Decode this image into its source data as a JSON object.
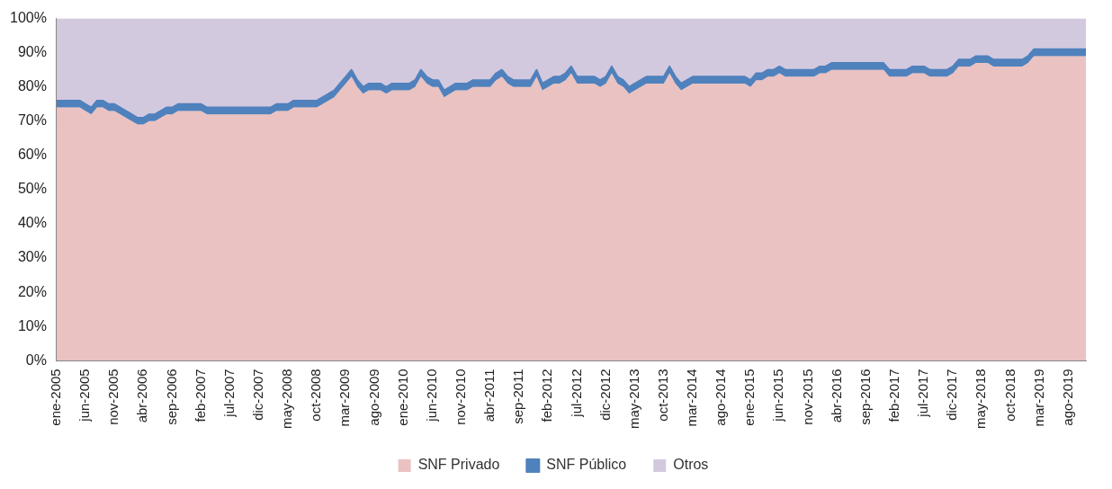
{
  "chart_data": {
    "type": "area",
    "stacked": true,
    "legend": "bottom",
    "grid": false,
    "categories": [
      "ene-2005",
      null,
      null,
      null,
      null,
      "jun-2005",
      null,
      null,
      null,
      null,
      "nov-2005",
      null,
      null,
      null,
      null,
      "abr-2006",
      null,
      null,
      null,
      null,
      "sep-2006",
      null,
      null,
      null,
      null,
      "feb-2007",
      null,
      null,
      null,
      null,
      "jul-2007",
      null,
      null,
      null,
      null,
      "dic-2007",
      null,
      null,
      null,
      null,
      "may-2008",
      null,
      null,
      null,
      null,
      "oct-2008",
      null,
      null,
      null,
      null,
      "mar-2009",
      null,
      null,
      null,
      null,
      "ago-2009",
      null,
      null,
      null,
      null,
      "ene-2010",
      null,
      null,
      null,
      null,
      "jun-2010",
      null,
      null,
      null,
      null,
      "nov-2010",
      null,
      null,
      null,
      null,
      "abr-2011",
      null,
      null,
      null,
      null,
      "sep-2011",
      null,
      null,
      null,
      null,
      "feb-2012",
      null,
      null,
      null,
      null,
      "jul-2012",
      null,
      null,
      null,
      null,
      "dic-2012",
      null,
      null,
      null,
      null,
      "may-2013",
      null,
      null,
      null,
      null,
      "oct-2013",
      null,
      null,
      null,
      null,
      "mar-2014",
      null,
      null,
      null,
      null,
      "ago-2014",
      null,
      null,
      null,
      null,
      "ene-2015",
      null,
      null,
      null,
      null,
      "jun-2015",
      null,
      null,
      null,
      null,
      "nov-2015",
      null,
      null,
      null,
      null,
      "abr-2016",
      null,
      null,
      null,
      null,
      "sep-2016",
      null,
      null,
      null,
      null,
      "feb-2017",
      null,
      null,
      null,
      null,
      "jul-2017",
      null,
      null,
      null,
      null,
      "dic-2017",
      null,
      null,
      null,
      null,
      "may-2018",
      null,
      null,
      null,
      null,
      "oct-2018",
      null,
      null,
      null,
      null,
      "mar-2019",
      null,
      null,
      null,
      null,
      "ago-2019",
      null,
      null,
      null
    ],
    "ylim": [
      0,
      100
    ],
    "yticks": [
      {
        "value": 0,
        "label": "0%"
      },
      {
        "value": 10,
        "label": "10%"
      },
      {
        "value": 20,
        "label": "20%"
      },
      {
        "value": 30,
        "label": "30%"
      },
      {
        "value": 40,
        "label": "40%"
      },
      {
        "value": 50,
        "label": "50%"
      },
      {
        "value": 60,
        "label": "60%"
      },
      {
        "value": 70,
        "label": "70%"
      },
      {
        "value": 80,
        "label": "80%"
      },
      {
        "value": 90,
        "label": "90%"
      },
      {
        "value": 100,
        "label": "100%"
      }
    ],
    "series": [
      {
        "name": "SNF Privado",
        "color": "#c0504d",
        "values": [
          74,
          74,
          74,
          74,
          74,
          73,
          72,
          74,
          74,
          73,
          73,
          72,
          71,
          70,
          69,
          69,
          70,
          70,
          71,
          72,
          72,
          73,
          73,
          73,
          73,
          73,
          72,
          72,
          72,
          72,
          72,
          72,
          72,
          72,
          72,
          72,
          72,
          72,
          73,
          73,
          73,
          74,
          74,
          74,
          74,
          74,
          75,
          76,
          77,
          79,
          81,
          83,
          80,
          78,
          79,
          79,
          79,
          78,
          79,
          79,
          79,
          79,
          80,
          83,
          81,
          80,
          80,
          77,
          78,
          79,
          79,
          79,
          80,
          80,
          80,
          80,
          82,
          83,
          81,
          80,
          80,
          80,
          80,
          83,
          79,
          80,
          81,
          81,
          82,
          84,
          81,
          81,
          81,
          81,
          80,
          81,
          84,
          81,
          80,
          78,
          79,
          80,
          81,
          81,
          81,
          81,
          84,
          81,
          79,
          80,
          81,
          81,
          81,
          81,
          81,
          81,
          81,
          81,
          81,
          81,
          80,
          82,
          82,
          83,
          83,
          84,
          83,
          83,
          83,
          83,
          83,
          83,
          84,
          84,
          85,
          85,
          85,
          85,
          85,
          85,
          85,
          85,
          85,
          85,
          83,
          83,
          83,
          83,
          84,
          84,
          84,
          83,
          83,
          83,
          83,
          84,
          86,
          86,
          86,
          87,
          87,
          87,
          86,
          86,
          86,
          86,
          86,
          86,
          87,
          89,
          89,
          89,
          89,
          89,
          89,
          89,
          89,
          89,
          89
        ]
      },
      {
        "name": "SNF Público",
        "color": "#4f81bd",
        "values": [
          2,
          2,
          2,
          2,
          2,
          2,
          2,
          2,
          2,
          2,
          2,
          2,
          2,
          2,
          2,
          2,
          2,
          2,
          2,
          2,
          2,
          2,
          2,
          2,
          2,
          2,
          2,
          2,
          2,
          2,
          2,
          2,
          2,
          2,
          2,
          2,
          2,
          2,
          2,
          2,
          2,
          2,
          2,
          2,
          2,
          2,
          2,
          2,
          2,
          2,
          2,
          2,
          2,
          2,
          2,
          2,
          2,
          2,
          2,
          2,
          2,
          2,
          2,
          2,
          2,
          2,
          2,
          2,
          2,
          2,
          2,
          2,
          2,
          2,
          2,
          2,
          2,
          2,
          2,
          2,
          2,
          2,
          2,
          2,
          2,
          2,
          2,
          2,
          2,
          2,
          2,
          2,
          2,
          2,
          2,
          2,
          2,
          2,
          2,
          2,
          2,
          2,
          2,
          2,
          2,
          2,
          2,
          2,
          2,
          2,
          2,
          2,
          2,
          2,
          2,
          2,
          2,
          2,
          2,
          2,
          2,
          2,
          2,
          2,
          2,
          2,
          2,
          2,
          2,
          2,
          2,
          2,
          2,
          2,
          2,
          2,
          2,
          2,
          2,
          2,
          2,
          2,
          2,
          2,
          2,
          2,
          2,
          2,
          2,
          2,
          2,
          2,
          2,
          2,
          2,
          2,
          2,
          2,
          2,
          2,
          2,
          2,
          2,
          2,
          2,
          2,
          2,
          2,
          2,
          2,
          2,
          2,
          2,
          2,
          2,
          2,
          2,
          2,
          2
        ]
      },
      {
        "name": "Otros",
        "color": "#8064a2",
        "values": [
          24,
          24,
          24,
          24,
          24,
          25,
          26,
          24,
          24,
          25,
          25,
          26,
          27,
          28,
          29,
          29,
          28,
          28,
          27,
          26,
          26,
          25,
          25,
          25,
          25,
          25,
          26,
          26,
          26,
          26,
          26,
          26,
          26,
          26,
          26,
          26,
          26,
          26,
          25,
          25,
          25,
          24,
          24,
          24,
          24,
          24,
          23,
          22,
          21,
          19,
          17,
          15,
          18,
          20,
          19,
          19,
          19,
          20,
          19,
          19,
          19,
          19,
          18,
          15,
          17,
          18,
          18,
          21,
          20,
          19,
          19,
          19,
          18,
          18,
          18,
          18,
          16,
          15,
          17,
          18,
          18,
          18,
          18,
          15,
          19,
          18,
          17,
          17,
          16,
          14,
          17,
          17,
          17,
          17,
          18,
          17,
          14,
          17,
          18,
          20,
          19,
          18,
          17,
          17,
          17,
          17,
          14,
          17,
          19,
          18,
          17,
          17,
          17,
          17,
          17,
          17,
          17,
          17,
          17,
          17,
          18,
          16,
          16,
          15,
          15,
          14,
          15,
          15,
          15,
          15,
          15,
          15,
          14,
          14,
          13,
          13,
          13,
          13,
          13,
          13,
          13,
          13,
          13,
          13,
          15,
          15,
          15,
          15,
          14,
          14,
          14,
          15,
          15,
          15,
          15,
          14,
          12,
          12,
          12,
          11,
          11,
          11,
          12,
          12,
          12,
          12,
          12,
          12,
          11,
          9,
          9,
          9,
          9,
          9,
          9,
          9,
          9,
          9,
          9
        ]
      }
    ]
  }
}
